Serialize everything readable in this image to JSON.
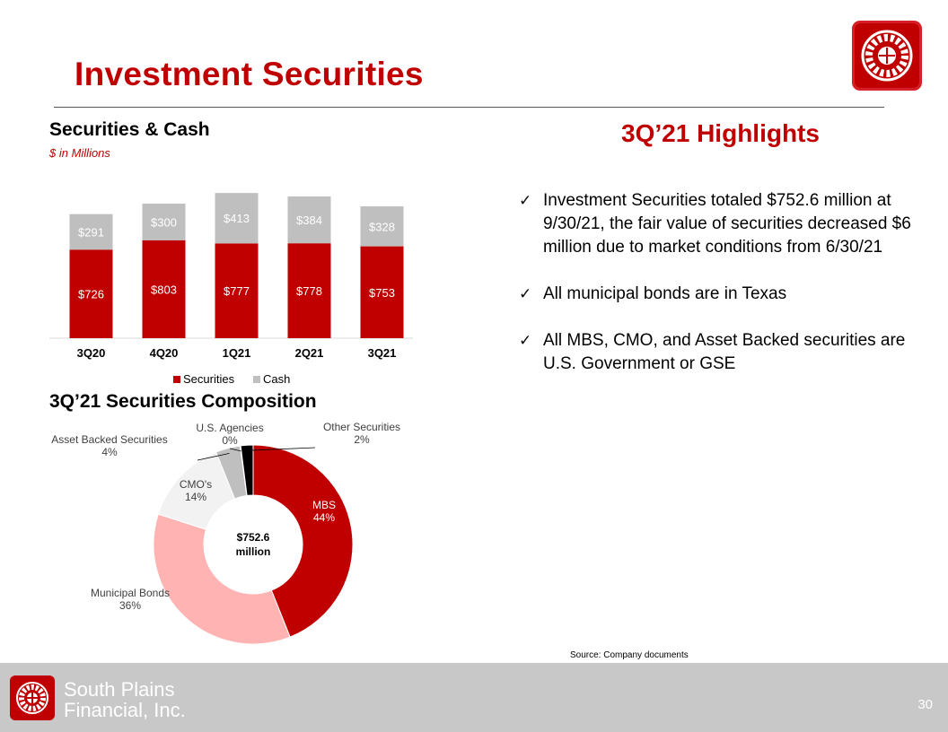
{
  "header": {
    "title": "Investment Securities"
  },
  "logo": {
    "icon": "south-plains-wheel-icon",
    "color": "#c00000"
  },
  "chart_data": [
    {
      "type": "bar",
      "stacked": true,
      "title": "Securities & Cash",
      "subtitle": "$ in Millions",
      "categories": [
        "3Q20",
        "4Q20",
        "1Q21",
        "2Q21",
        "3Q21"
      ],
      "series": [
        {
          "name": "Securities",
          "color": "#c00000",
          "values": [
            726,
            803,
            777,
            778,
            753
          ],
          "labels": [
            "$726",
            "$803",
            "$777",
            "$778",
            "$753"
          ]
        },
        {
          "name": "Cash",
          "color": "#bfbfbf",
          "values": [
            291,
            300,
            413,
            384,
            328
          ],
          "labels": [
            "$291",
            "$300",
            "$413",
            "$384",
            "$328"
          ]
        }
      ],
      "legend": "bottom",
      "ylim": [
        0,
        1250
      ]
    },
    {
      "type": "pie",
      "donut": true,
      "title": "3Q’21 Securities Composition",
      "center_label": [
        "$752.6",
        "million"
      ],
      "slices": [
        {
          "name": "MBS",
          "pct": 44,
          "label": "44%",
          "color": "#c00000"
        },
        {
          "name": "Municipal Bonds",
          "pct": 36,
          "label": "36%",
          "color": "#ffb3b3"
        },
        {
          "name": "CMO's",
          "pct": 14,
          "label": "14%",
          "color": "#f2f2f2"
        },
        {
          "name": "Asset Backed Securities",
          "pct": 4,
          "label": "4%",
          "color": "#bfbfbf"
        },
        {
          "name": "U.S. Agencies",
          "pct": 0,
          "label": "0%",
          "color": "#7f7f7f"
        },
        {
          "name": "Other Securities",
          "pct": 2,
          "label": "2%",
          "color": "#000000"
        }
      ]
    }
  ],
  "highlights": {
    "title": "3Q’21 Highlights",
    "bullets": [
      "Investment Securities totaled $752.6 million at 9/30/21, the fair value of securities decreased $6 million due to market conditions from 6/30/21",
      "All municipal bonds are in Texas",
      "All MBS, CMO, and Asset Backed securities are U.S. Government or GSE"
    ]
  },
  "source": "Source: Company documents",
  "footer": {
    "company_line1": "South Plains",
    "company_line2": "Financial, Inc.",
    "page_number": "30",
    "background": "#c8c8c8"
  }
}
